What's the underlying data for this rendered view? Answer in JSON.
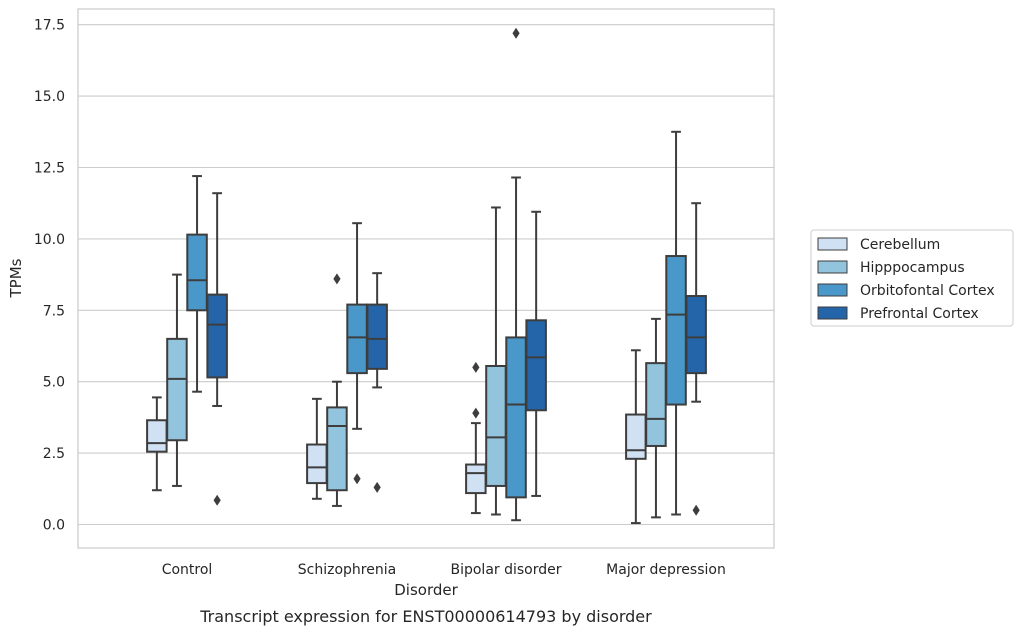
{
  "chart_data": {
    "type": "box",
    "title": "",
    "caption": "Transcript expression for ENST00000614793 by disorder",
    "xlabel": "Disorder",
    "ylabel": "TPMs",
    "ylim": [
      -0.8,
      18.1
    ],
    "yticks": [
      "0.0",
      "2.5",
      "5.0",
      "7.5",
      "10.0",
      "12.5",
      "15.0",
      "17.5"
    ],
    "ytick_values": [
      0,
      2.5,
      5.0,
      7.5,
      10.0,
      12.5,
      15.0,
      17.5
    ],
    "grid": "horizontal",
    "legend_position": "right",
    "categories": [
      "Control",
      "Schizophrenia",
      "Bipolar disorder",
      "Major depression"
    ],
    "series": [
      {
        "name": "Cerebellum",
        "color": "#cfe1f2",
        "boxes": [
          {
            "whisker_low": 1.2,
            "q1": 2.55,
            "median": 2.85,
            "q3": 3.65,
            "whisker_high": 4.45,
            "outliers": []
          },
          {
            "whisker_low": 0.9,
            "q1": 1.45,
            "median": 2.0,
            "q3": 2.8,
            "whisker_high": 4.4,
            "outliers": []
          },
          {
            "whisker_low": 0.4,
            "q1": 1.1,
            "median": 1.8,
            "q3": 2.1,
            "whisker_high": 3.55,
            "outliers": [
              3.9,
              5.5
            ]
          },
          {
            "whisker_low": 0.05,
            "q1": 2.3,
            "median": 2.6,
            "q3": 3.85,
            "whisker_high": 6.1,
            "outliers": []
          }
        ]
      },
      {
        "name": "Hipppocampus",
        "color": "#93c4de",
        "boxes": [
          {
            "whisker_low": 1.35,
            "q1": 2.95,
            "median": 5.1,
            "q3": 6.5,
            "whisker_high": 8.75,
            "outliers": []
          },
          {
            "whisker_low": 0.65,
            "q1": 1.2,
            "median": 3.45,
            "q3": 4.1,
            "whisker_high": 5.0,
            "outliers": [
              8.6
            ]
          },
          {
            "whisker_low": 0.35,
            "q1": 1.35,
            "median": 3.05,
            "q3": 5.55,
            "whisker_high": 11.1,
            "outliers": []
          },
          {
            "whisker_low": 0.25,
            "q1": 2.75,
            "median": 3.7,
            "q3": 5.65,
            "whisker_high": 7.2,
            "outliers": []
          }
        ]
      },
      {
        "name": "Orbitofontal Cortex",
        "color": "#4a98c9",
        "boxes": [
          {
            "whisker_low": 4.65,
            "q1": 7.5,
            "median": 8.55,
            "q3": 10.15,
            "whisker_high": 12.2,
            "outliers": []
          },
          {
            "whisker_low": 3.35,
            "q1": 5.3,
            "median": 6.55,
            "q3": 7.7,
            "whisker_high": 10.55,
            "outliers": [
              1.6
            ]
          },
          {
            "whisker_low": 0.15,
            "q1": 0.95,
            "median": 4.2,
            "q3": 6.55,
            "whisker_high": 12.15,
            "outliers": [
              17.2
            ]
          },
          {
            "whisker_low": 0.35,
            "q1": 4.2,
            "median": 7.35,
            "q3": 9.4,
            "whisker_high": 13.75,
            "outliers": []
          }
        ]
      },
      {
        "name": "Prefrontal Cortex",
        "color": "#2465a9",
        "boxes": [
          {
            "whisker_low": 4.15,
            "q1": 5.15,
            "median": 7.0,
            "q3": 8.05,
            "whisker_high": 11.6,
            "outliers": [
              0.85
            ]
          },
          {
            "whisker_low": 4.8,
            "q1": 5.45,
            "median": 6.5,
            "q3": 7.7,
            "whisker_high": 8.8,
            "outliers": [
              1.3
            ]
          },
          {
            "whisker_low": 1.0,
            "q1": 4.0,
            "median": 5.85,
            "q3": 7.15,
            "whisker_high": 10.95,
            "outliers": []
          },
          {
            "whisker_low": 4.3,
            "q1": 5.3,
            "median": 6.55,
            "q3": 8.0,
            "whisker_high": 11.25,
            "outliers": [
              0.5
            ]
          }
        ]
      }
    ]
  }
}
